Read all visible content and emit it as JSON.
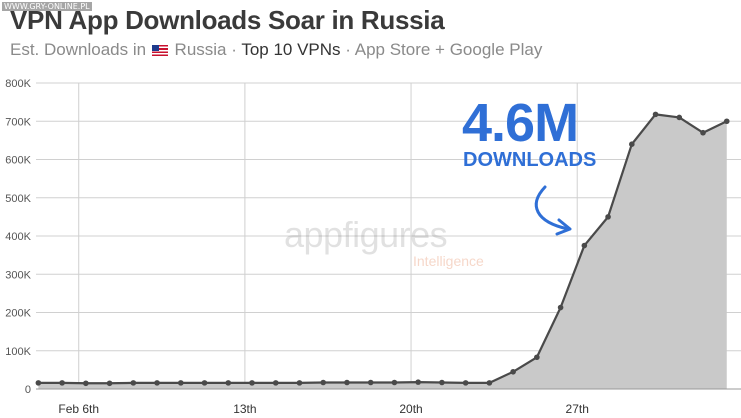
{
  "title": "VPN App Downloads Soar in Russia",
  "subtitle": {
    "part1": "Est. Downloads in",
    "country": "Russia",
    "sep1": " · ",
    "emphasis": "Top 10 VPNs",
    "sep2": " · ",
    "part2": "App Store + Google Play"
  },
  "watermark": "WWW.GRY-ONLINE.PL",
  "callout": {
    "value": "4.6M",
    "label": "DOWNLOADS",
    "color": "#2f6fd6"
  },
  "branding": {
    "name": "appfigures",
    "sub": "Intelligence"
  },
  "colors": {
    "line": "#4a4a4a",
    "fill": "#c9c9c9",
    "grid": "#d0d0d0"
  },
  "chart_data": {
    "type": "area",
    "title": "VPN App Downloads Soar in Russia",
    "xlabel": "",
    "ylabel": "",
    "ylim": [
      0,
      800000
    ],
    "y_ticks": [
      0,
      100000,
      200000,
      300000,
      400000,
      500000,
      600000,
      700000,
      800000
    ],
    "y_tick_labels": [
      "0",
      "100K",
      "200K",
      "300K",
      "400K",
      "500K",
      "600K",
      "700K",
      "800K"
    ],
    "x_tick_labels": [
      "Feb 6th",
      "13th",
      "20th",
      "27th"
    ],
    "x_tick_positions": [
      6,
      13,
      20,
      27
    ],
    "xlim": [
      4.2,
      33.9
    ],
    "grid": true,
    "series": [
      {
        "x": [
          4.3,
          5.3,
          6.3,
          7.3,
          8.3,
          9.3,
          10.3,
          11.3,
          12.3,
          13.3,
          14.3,
          15.3,
          16.3,
          17.3,
          18.3,
          19.3,
          20.3,
          21.3,
          22.3,
          23.3,
          24.3,
          25.3,
          26.3,
          27.3,
          28.3,
          29.3,
          30.3,
          31.3,
          32.3,
          33.3
        ],
        "y": [
          16000,
          16000,
          15000,
          15000,
          16000,
          16000,
          16000,
          16000,
          16000,
          16000,
          16000,
          16000,
          17000,
          17000,
          17000,
          17000,
          18000,
          17000,
          16000,
          16000,
          45000,
          83000,
          213000,
          375000,
          450000,
          640000,
          718000,
          710000,
          670000,
          700000
        ]
      }
    ]
  }
}
